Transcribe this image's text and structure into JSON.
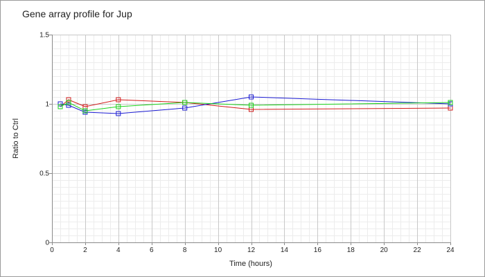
{
  "chart_data": {
    "type": "line",
    "title": "Gene array profile for Jup",
    "xlabel": "Time (hours)",
    "ylabel": "Ratio to Ctrl",
    "xlim": [
      0,
      24
    ],
    "ylim": [
      0,
      1.5
    ],
    "xticks": [
      0,
      2,
      4,
      6,
      8,
      10,
      12,
      14,
      16,
      18,
      20,
      22,
      24
    ],
    "yticks": [
      "0",
      "0.5",
      "1",
      "1.5"
    ],
    "grid": true,
    "legend": "none",
    "marker": "square",
    "series": [
      {
        "color": "#d21a1a",
        "x": [
          0.5,
          1,
          2,
          4,
          8,
          12,
          24
        ],
        "y": [
          0.98,
          1.03,
          0.98,
          1.03,
          1.01,
          0.96,
          0.97
        ]
      },
      {
        "color": "#1a1ad2",
        "x": [
          0.5,
          1,
          2,
          4,
          8,
          12,
          24
        ],
        "y": [
          1.0,
          0.99,
          0.94,
          0.93,
          0.97,
          1.05,
          1.0
        ]
      },
      {
        "color": "#1ad21a",
        "x": [
          0.5,
          1,
          2,
          4,
          8,
          12,
          24
        ],
        "y": [
          0.98,
          1.01,
          0.95,
          0.98,
          1.01,
          0.99,
          1.01
        ]
      }
    ]
  }
}
